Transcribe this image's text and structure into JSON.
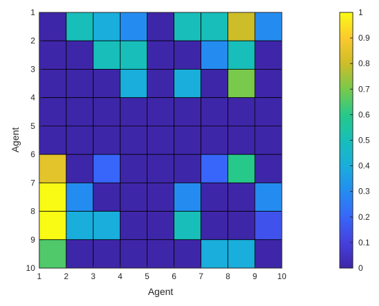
{
  "chart_data": {
    "type": "heatmap",
    "xlabel": "Agent",
    "ylabel": "Agent",
    "x_ticks": [
      "1",
      "2",
      "3",
      "4",
      "5",
      "6",
      "7",
      "8",
      "9",
      "10"
    ],
    "y_ticks": [
      "1",
      "2",
      "3",
      "4",
      "5",
      "6",
      "7",
      "8",
      "9",
      "10"
    ],
    "x_range": [
      1,
      10
    ],
    "y_range": [
      1,
      10
    ],
    "y_direction": "reversed",
    "colorbar": {
      "range": [
        0,
        1
      ],
      "ticks": [
        "0",
        "0.1",
        "0.2",
        "0.3",
        "0.4",
        "0.5",
        "0.6",
        "0.7",
        "0.8",
        "0.9",
        "1"
      ],
      "colormap": "parula"
    },
    "cell_border_color": "#000000",
    "grid": false,
    "values": [
      [
        0.0,
        0.5,
        0.4,
        0.3,
        0.0,
        0.5,
        0.5,
        0.8,
        0.3
      ],
      [
        0.0,
        0.0,
        0.5,
        0.5,
        0.0,
        0.0,
        0.3,
        0.5,
        0.0
      ],
      [
        0.0,
        0.0,
        0.0,
        0.4,
        0.0,
        0.4,
        0.0,
        0.7,
        0.0
      ],
      [
        0.0,
        0.0,
        0.0,
        0.0,
        0.0,
        0.0,
        0.0,
        0.0,
        0.0
      ],
      [
        0.0,
        0.0,
        0.0,
        0.0,
        0.0,
        0.0,
        0.0,
        0.0,
        0.0
      ],
      [
        0.85,
        0.0,
        0.2,
        0.0,
        0.0,
        0.0,
        0.2,
        0.6,
        0.0
      ],
      [
        1.0,
        0.3,
        0.0,
        0.0,
        0.0,
        0.3,
        0.0,
        0.0,
        0.3
      ],
      [
        1.0,
        0.4,
        0.4,
        0.0,
        0.0,
        0.5,
        0.0,
        0.0,
        0.15
      ],
      [
        0.65,
        0.0,
        0.0,
        0.0,
        0.0,
        0.0,
        0.4,
        0.4,
        0.0
      ]
    ]
  }
}
